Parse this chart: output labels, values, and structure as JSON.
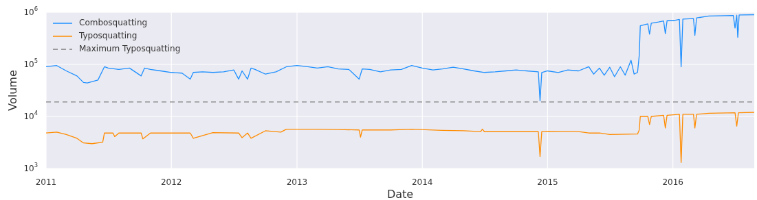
{
  "chart_data": {
    "type": "line",
    "xlabel": "Date",
    "ylabel": "Volume",
    "log": "y",
    "grid": true,
    "legend": "top left",
    "line_style": "solid",
    "xlim": [
      "2011-01-01",
      "2016-08-25"
    ],
    "xticks": [
      "2011",
      "2012",
      "2013",
      "2014",
      "2015",
      "2016"
    ],
    "ylim": [
      1000,
      1000000
    ],
    "yticks": [
      {
        "value": 1000,
        "label": "10$^{3}$"
      },
      {
        "value": 10000,
        "label": "10$^{4}$"
      },
      {
        "value": 100000,
        "label": "10$^{5}$"
      },
      {
        "value": 1000000,
        "label": "10$^{6}$"
      }
    ],
    "ref_lines": [
      {
        "axis": "y",
        "value": 19000,
        "label": "Maximum Typosquatting",
        "color": "#808080",
        "line_style": "dashed"
      }
    ],
    "series": [
      {
        "name": "Combosquatting",
        "color": "#1e90ff",
        "x": [
          "2011-01-01",
          "2011-02-01",
          "2011-03-01",
          "2011-04-01",
          "2011-04-20",
          "2011-05-01",
          "2011-06-01",
          "2011-06-20",
          "2011-07-01",
          "2011-08-01",
          "2011-09-01",
          "2011-10-05",
          "2011-10-15",
          "2011-11-01",
          "2011-12-01",
          "2012-01-01",
          "2012-02-01",
          "2012-02-25",
          "2012-03-05",
          "2012-04-01",
          "2012-05-01",
          "2012-06-01",
          "2012-07-01",
          "2012-07-15",
          "2012-07-25",
          "2012-08-10",
          "2012-08-20",
          "2012-09-01",
          "2012-10-01",
          "2012-11-01",
          "2012-12-01",
          "2013-01-01",
          "2013-02-01",
          "2013-03-01",
          "2013-04-01",
          "2013-05-01",
          "2013-06-01",
          "2013-07-01",
          "2013-07-10",
          "2013-08-01",
          "2013-09-01",
          "2013-10-01",
          "2013-11-01",
          "2013-12-01",
          "2014-01-01",
          "2014-02-01",
          "2014-03-01",
          "2014-04-01",
          "2014-05-01",
          "2014-06-01",
          "2014-07-01",
          "2014-08-01",
          "2014-09-01",
          "2014-10-01",
          "2014-11-01",
          "2014-12-05",
          "2014-12-10",
          "2014-12-15",
          "2015-01-01",
          "2015-02-01",
          "2015-03-01",
          "2015-04-01",
          "2015-05-01",
          "2015-05-15",
          "2015-06-01",
          "2015-06-15",
          "2015-07-01",
          "2015-07-15",
          "2015-08-01",
          "2015-08-15",
          "2015-09-01",
          "2015-09-10",
          "2015-09-20",
          "2015-09-25",
          "2015-09-28",
          "2015-10-20",
          "2015-10-25",
          "2015-10-30",
          "2015-11-20",
          "2015-12-05",
          "2015-12-10",
          "2015-12-15",
          "2016-01-05",
          "2016-01-20",
          "2016-01-25",
          "2016-01-30",
          "2016-03-01",
          "2016-03-05",
          "2016-03-10",
          "2016-04-15",
          "2016-06-25",
          "2016-06-30",
          "2016-07-05",
          "2016-07-08",
          "2016-07-12",
          "2016-08-25"
        ],
        "values": [
          90000,
          95000,
          75000,
          60000,
          45000,
          44000,
          50000,
          90000,
          85000,
          80000,
          85000,
          60000,
          85000,
          80000,
          75000,
          70000,
          68000,
          52000,
          70000,
          72000,
          70000,
          72000,
          78000,
          52000,
          75000,
          52000,
          85000,
          80000,
          65000,
          72000,
          90000,
          95000,
          90000,
          85000,
          90000,
          82000,
          80000,
          52000,
          82000,
          80000,
          72000,
          78000,
          80000,
          95000,
          85000,
          78000,
          82000,
          88000,
          82000,
          75000,
          70000,
          72000,
          75000,
          78000,
          75000,
          72000,
          20000,
          70000,
          75000,
          70000,
          78000,
          75000,
          90000,
          65000,
          85000,
          62000,
          88000,
          58000,
          90000,
          62000,
          120000,
          65000,
          70000,
          150000,
          550000,
          600000,
          380000,
          620000,
          650000,
          680000,
          390000,
          690000,
          700000,
          730000,
          90000,
          740000,
          760000,
          360000,
          780000,
          850000,
          870000,
          500000,
          880000,
          330000,
          890000,
          900000
        ]
      },
      {
        "name": "Typosquatting",
        "color": "#ff8c00",
        "x": [
          "2011-01-01",
          "2011-02-01",
          "2011-03-01",
          "2011-04-01",
          "2011-04-20",
          "2011-05-15",
          "2011-06-15",
          "2011-06-20",
          "2011-07-15",
          "2011-07-20",
          "2011-08-01",
          "2011-10-05",
          "2011-10-10",
          "2011-11-01",
          "2012-01-01",
          "2012-02-25",
          "2012-03-05",
          "2012-05-01",
          "2012-07-15",
          "2012-07-25",
          "2012-08-10",
          "2012-08-20",
          "2012-10-01",
          "2012-11-15",
          "2012-12-01",
          "2013-03-01",
          "2013-05-01",
          "2013-07-01",
          "2013-07-05",
          "2013-07-10",
          "2013-10-01",
          "2013-12-01",
          "2014-03-01",
          "2014-05-01",
          "2014-06-20",
          "2014-06-25",
          "2014-07-01",
          "2014-10-01",
          "2014-12-05",
          "2014-12-10",
          "2014-12-15",
          "2015-01-01",
          "2015-04-01",
          "2015-05-01",
          "2015-06-01",
          "2015-07-01",
          "2015-09-20",
          "2015-09-25",
          "2015-09-28",
          "2015-10-20",
          "2015-10-25",
          "2015-10-30",
          "2015-12-05",
          "2015-12-10",
          "2015-12-15",
          "2016-01-20",
          "2016-01-25",
          "2016-01-30",
          "2016-03-01",
          "2016-03-05",
          "2016-03-10",
          "2016-04-15",
          "2016-06-30",
          "2016-07-05",
          "2016-07-10",
          "2016-08-25"
        ],
        "values": [
          4800,
          5000,
          4500,
          3800,
          3100,
          3000,
          3200,
          4800,
          4800,
          4100,
          4800,
          4800,
          3700,
          4800,
          4800,
          4800,
          3800,
          4900,
          4800,
          3900,
          4800,
          3800,
          5300,
          5000,
          5700,
          5700,
          5600,
          5500,
          4000,
          5500,
          5500,
          5700,
          5400,
          5300,
          5100,
          5700,
          5100,
          5100,
          5100,
          1700,
          5100,
          5200,
          5100,
          4800,
          4800,
          4500,
          4600,
          5500,
          10000,
          10000,
          7000,
          10000,
          10500,
          6000,
          10500,
          11000,
          1300,
          11000,
          11000,
          6000,
          11000,
          11500,
          11800,
          6500,
          11800,
          12000
        ]
      }
    ]
  }
}
